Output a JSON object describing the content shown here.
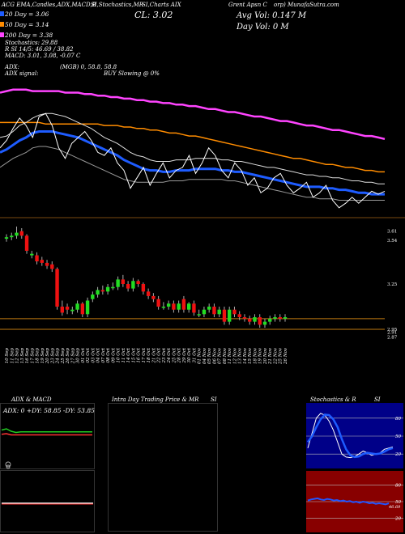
{
  "header": {
    "line1_left": "ACG EMA,Candles,ADX,MACD,B",
    "line1_mid": "SI,Stochastics,MR",
    "line1_mid2": "SI,Charts AIX",
    "line1_right": "Grent Apsn C",
    "line1_right2": "orp) MunafaSutra.com",
    "cl_label": "CL: 3.02",
    "avg_vol": "Avg Vol: 0.147 M",
    "day_vol": "Day Vol: 0   M",
    "ema20": "20  Day = 3.06",
    "ema50": "50  Day = 3.14",
    "ema200": "200  Day = 3.38",
    "stochastics": "Stochastics: 29.88",
    "rsi": "R          SI 14/5: 46.69 / 38.82",
    "macd": "MACD: 3.01, 3.08, -0.07 C",
    "adx_label": "ADX:",
    "adx_values": "(MGB) 0, 58.8, 58.8",
    "adx_signal_label": "ADX  signal:",
    "adx_signal_text": "BUY Slowing @ 0%"
  },
  "chart_data": [
    {
      "type": "line",
      "name": "ema-panel",
      "x_count": 60,
      "series": [
        {
          "name": "200 Day",
          "color": "#ff44ff",
          "values": [
            3.62,
            3.63,
            3.64,
            3.64,
            3.64,
            3.63,
            3.63,
            3.63,
            3.63,
            3.63,
            3.62,
            3.62,
            3.62,
            3.61,
            3.61,
            3.6,
            3.6,
            3.59,
            3.59,
            3.58,
            3.58,
            3.57,
            3.57,
            3.56,
            3.56,
            3.55,
            3.55,
            3.54,
            3.54,
            3.53,
            3.53,
            3.52,
            3.51,
            3.51,
            3.5,
            3.49,
            3.49,
            3.48,
            3.47,
            3.46,
            3.46,
            3.45,
            3.44,
            3.43,
            3.43,
            3.42,
            3.41,
            3.4,
            3.4,
            3.39,
            3.38,
            3.37,
            3.37,
            3.36,
            3.35,
            3.34,
            3.33,
            3.33,
            3.32,
            3.31
          ]
        },
        {
          "name": "50 Day",
          "color": "#ff8c00",
          "values": [
            3.42,
            3.42,
            3.42,
            3.42,
            3.42,
            3.42,
            3.42,
            3.41,
            3.41,
            3.41,
            3.41,
            3.41,
            3.41,
            3.41,
            3.41,
            3.41,
            3.4,
            3.4,
            3.4,
            3.39,
            3.39,
            3.38,
            3.38,
            3.37,
            3.37,
            3.36,
            3.35,
            3.35,
            3.34,
            3.33,
            3.33,
            3.32,
            3.31,
            3.3,
            3.29,
            3.28,
            3.27,
            3.26,
            3.25,
            3.24,
            3.23,
            3.22,
            3.21,
            3.2,
            3.19,
            3.18,
            3.18,
            3.17,
            3.16,
            3.15,
            3.14,
            3.14,
            3.13,
            3.12,
            3.12,
            3.11,
            3.1,
            3.1,
            3.09,
            3.09
          ]
        },
        {
          "name": "20 Day",
          "color": "#1e5cff",
          "values": [
            3.22,
            3.24,
            3.27,
            3.3,
            3.32,
            3.35,
            3.36,
            3.36,
            3.36,
            3.35,
            3.34,
            3.33,
            3.32,
            3.3,
            3.28,
            3.26,
            3.24,
            3.22,
            3.2,
            3.17,
            3.15,
            3.13,
            3.11,
            3.1,
            3.1,
            3.09,
            3.09,
            3.1,
            3.1,
            3.1,
            3.11,
            3.11,
            3.11,
            3.11,
            3.1,
            3.1,
            3.09,
            3.09,
            3.08,
            3.07,
            3.06,
            3.05,
            3.04,
            3.03,
            3.02,
            3.01,
            3.0,
            2.99,
            2.99,
            2.99,
            2.98,
            2.98,
            2.97,
            2.97,
            2.96,
            2.95,
            2.95,
            2.94,
            2.94,
            2.94
          ]
        },
        {
          "name": "Upper band",
          "color": "#dddddd",
          "values": [
            3.32,
            3.33,
            3.36,
            3.4,
            3.42,
            3.45,
            3.47,
            3.48,
            3.48,
            3.47,
            3.46,
            3.44,
            3.42,
            3.4,
            3.38,
            3.35,
            3.32,
            3.3,
            3.28,
            3.25,
            3.22,
            3.2,
            3.19,
            3.17,
            3.16,
            3.16,
            3.16,
            3.17,
            3.17,
            3.17,
            3.18,
            3.18,
            3.18,
            3.18,
            3.17,
            3.17,
            3.16,
            3.16,
            3.15,
            3.14,
            3.13,
            3.12,
            3.12,
            3.11,
            3.1,
            3.09,
            3.08,
            3.07,
            3.07,
            3.06,
            3.06,
            3.05,
            3.05,
            3.04,
            3.03,
            3.03,
            3.02,
            3.02,
            3.01,
            3.01
          ]
        },
        {
          "name": "Lower band",
          "color": "#999999",
          "values": [
            3.12,
            3.15,
            3.18,
            3.2,
            3.22,
            3.25,
            3.26,
            3.26,
            3.25,
            3.24,
            3.22,
            3.2,
            3.18,
            3.16,
            3.14,
            3.12,
            3.1,
            3.08,
            3.06,
            3.04,
            3.03,
            3.02,
            3.02,
            3.02,
            3.02,
            3.02,
            3.03,
            3.03,
            3.03,
            3.04,
            3.04,
            3.04,
            3.04,
            3.04,
            3.04,
            3.03,
            3.03,
            3.02,
            3.01,
            3.0,
            2.99,
            2.98,
            2.97,
            2.96,
            2.95,
            2.94,
            2.93,
            2.92,
            2.92,
            2.91,
            2.91,
            2.91,
            2.9,
            2.9,
            2.9,
            2.9,
            2.9,
            2.9,
            2.9,
            2.9
          ]
        },
        {
          "name": "Price",
          "color": "#ffffff",
          "values": [
            3.25,
            3.3,
            3.38,
            3.45,
            3.4,
            3.32,
            3.46,
            3.48,
            3.4,
            3.25,
            3.18,
            3.28,
            3.32,
            3.36,
            3.3,
            3.22,
            3.2,
            3.25,
            3.15,
            3.1,
            2.98,
            3.05,
            3.12,
            3.0,
            3.08,
            3.15,
            3.05,
            3.1,
            3.12,
            3.2,
            3.08,
            3.15,
            3.25,
            3.2,
            3.1,
            3.05,
            3.15,
            3.1,
            3.0,
            3.05,
            2.95,
            2.98,
            3.05,
            3.08,
            3.0,
            2.95,
            2.98,
            3.02,
            2.92,
            2.95,
            3.0,
            2.9,
            2.85,
            2.88,
            2.92,
            2.88,
            2.92,
            2.96,
            2.94,
            2.96
          ]
        }
      ]
    },
    {
      "type": "candlestick",
      "name": "price-panel",
      "ylim": [
        2.88,
        3.62
      ],
      "ytick_labels": [
        "3.61",
        "3.54",
        "3.25",
        "2.95",
        "2.91",
        "2.87"
      ],
      "ytick_values": [
        3.6,
        3.54,
        3.25,
        2.95,
        2.93,
        2.9
      ],
      "hlines": [
        3.02,
        2.95
      ],
      "categories": [
        "10 Sep",
        "11 Sep",
        "12 Sep",
        "13 Sep",
        "16 Sep",
        "17 Sep",
        "18 Sep",
        "19 Sep",
        "20 Sep",
        "23 Sep",
        "24 Sep",
        "25 Sep",
        "26 Sep",
        "27 Sep",
        "30 Sep",
        "01 Oct",
        "02 Oct",
        "03 Oct",
        "04 Oct",
        "07 Oct",
        "08 Oct",
        "09 Oct",
        "10 Oct",
        "11 Oct",
        "14 Oct",
        "15 Oct",
        "16 Oct",
        "17 Oct",
        "18 Oct",
        "21 Oct",
        "22 Oct",
        "23 Oct",
        "24 Oct",
        "25 Oct",
        "28 Oct",
        "29 Oct",
        "30 Oct",
        "31 Oct",
        "01 Nov",
        "04 Nov",
        "05 Nov",
        "06 Nov",
        "07 Nov",
        "08 Nov",
        "11 Nov",
        "12 Nov",
        "13 Nov",
        "14 Nov",
        "15 Nov",
        "18 Nov",
        "19 Nov",
        "20 Nov",
        "21 Nov",
        "22 Nov",
        "25 Nov",
        "26 Nov"
      ],
      "open": [
        3.55,
        3.56,
        3.57,
        3.6,
        3.57,
        3.44,
        3.44,
        3.41,
        3.39,
        3.38,
        3.35,
        3.1,
        3.1,
        3.07,
        3.08,
        3.12,
        3.05,
        3.15,
        3.18,
        3.21,
        3.2,
        3.23,
        3.23,
        3.28,
        3.25,
        3.22,
        3.27,
        3.25,
        3.2,
        3.17,
        3.15,
        3.1,
        3.1,
        3.12,
        3.08,
        3.15,
        3.08,
        3.12,
        3.05,
        3.05,
        3.08,
        3.1,
        3.05,
        3.08,
        3.0,
        3.08,
        3.05,
        3.03,
        3.02,
        3.0,
        3.03,
        2.98,
        3.0,
        3.02,
        3.03,
        3.02
      ],
      "close": [
        3.56,
        3.57,
        3.59,
        3.57,
        3.47,
        3.45,
        3.4,
        3.39,
        3.37,
        3.35,
        3.1,
        3.06,
        3.08,
        3.08,
        3.12,
        3.05,
        3.14,
        3.18,
        3.21,
        3.2,
        3.23,
        3.23,
        3.28,
        3.25,
        3.22,
        3.27,
        3.25,
        3.2,
        3.17,
        3.15,
        3.1,
        3.1,
        3.12,
        3.08,
        3.12,
        3.08,
        3.12,
        3.06,
        3.05,
        3.08,
        3.1,
        3.05,
        3.08,
        3.0,
        3.08,
        3.05,
        3.03,
        3.02,
        3.0,
        3.03,
        2.98,
        3.0,
        3.02,
        3.03,
        3.02,
        3.03
      ],
      "high": [
        3.58,
        3.59,
        3.64,
        3.62,
        3.58,
        3.47,
        3.46,
        3.43,
        3.41,
        3.4,
        3.36,
        3.14,
        3.12,
        3.1,
        3.14,
        3.13,
        3.16,
        3.2,
        3.23,
        3.24,
        3.25,
        3.26,
        3.3,
        3.31,
        3.27,
        3.29,
        3.28,
        3.26,
        3.22,
        3.19,
        3.17,
        3.13,
        3.14,
        3.14,
        3.14,
        3.17,
        3.13,
        3.14,
        3.08,
        3.1,
        3.12,
        3.12,
        3.1,
        3.1,
        3.1,
        3.1,
        3.07,
        3.05,
        3.04,
        3.05,
        3.05,
        3.02,
        3.04,
        3.05,
        3.05,
        3.05
      ],
      "low": [
        3.53,
        3.54,
        3.55,
        3.55,
        3.45,
        3.42,
        3.38,
        3.37,
        3.35,
        3.33,
        3.08,
        3.04,
        3.05,
        3.05,
        3.06,
        3.03,
        3.03,
        3.13,
        3.16,
        3.18,
        3.18,
        3.21,
        3.21,
        3.23,
        3.2,
        3.2,
        3.23,
        3.18,
        3.15,
        3.13,
        3.08,
        3.08,
        3.08,
        3.06,
        3.06,
        3.06,
        3.06,
        3.04,
        3.03,
        3.03,
        3.06,
        3.03,
        3.03,
        2.98,
        2.98,
        3.03,
        3.01,
        3.0,
        2.98,
        2.98,
        2.96,
        2.96,
        2.98,
        3.0,
        3.0,
        3.0
      ]
    },
    {
      "type": "line",
      "name": "adx-panel",
      "title": "ADX  & MACD",
      "adx_text": "ADX: 0  +DY: 58.85  -DY: 53.85",
      "series": [
        {
          "name": "+DY",
          "color": "#22cc22",
          "values": [
            62,
            64,
            60,
            58,
            59,
            59,
            59,
            59,
            59,
            59,
            59,
            59,
            59,
            59,
            59,
            59,
            59,
            59,
            59,
            59
          ]
        },
        {
          "name": "-DY",
          "color": "#ff3333",
          "values": [
            55,
            56,
            54,
            54,
            54,
            54,
            54,
            54,
            54,
            54,
            54,
            54,
            54,
            54,
            54,
            54,
            54,
            54,
            54,
            54
          ]
        }
      ]
    },
    {
      "type": "line",
      "name": "intraday-panel",
      "title": "Intra Day Trading Price  & MR",
      "title2": "SI"
    },
    {
      "type": "line",
      "name": "stochastics-panel",
      "title": "Stochastics & R",
      "title2": "SI",
      "ytick_labels": [
        "80",
        "50",
        "20"
      ],
      "series": [
        {
          "name": "Fast",
          "color": "#ffffff",
          "values": [
            30,
            55,
            80,
            88,
            85,
            75,
            60,
            40,
            20,
            15,
            14,
            16,
            20,
            25,
            22,
            18,
            20,
            22,
            28,
            30,
            32
          ]
        },
        {
          "name": "Slow",
          "color": "#1e5cff",
          "values": [
            40,
            50,
            65,
            78,
            86,
            85,
            78,
            65,
            45,
            28,
            18,
            15,
            16,
            20,
            22,
            21,
            20,
            21,
            24,
            28,
            30
          ]
        }
      ]
    },
    {
      "type": "line",
      "name": "rsi-panel",
      "ytick_labels": [
        "80",
        "50",
        "20"
      ],
      "last_label": "46.69",
      "series": [
        {
          "name": "RSI",
          "color": "#2255ff",
          "values": [
            52,
            54,
            55,
            56,
            54,
            53,
            55,
            54,
            52,
            53,
            51,
            52,
            50,
            51,
            49,
            50,
            48,
            50,
            49,
            47,
            48,
            46,
            47,
            46,
            45,
            47
          ]
        }
      ]
    }
  ]
}
